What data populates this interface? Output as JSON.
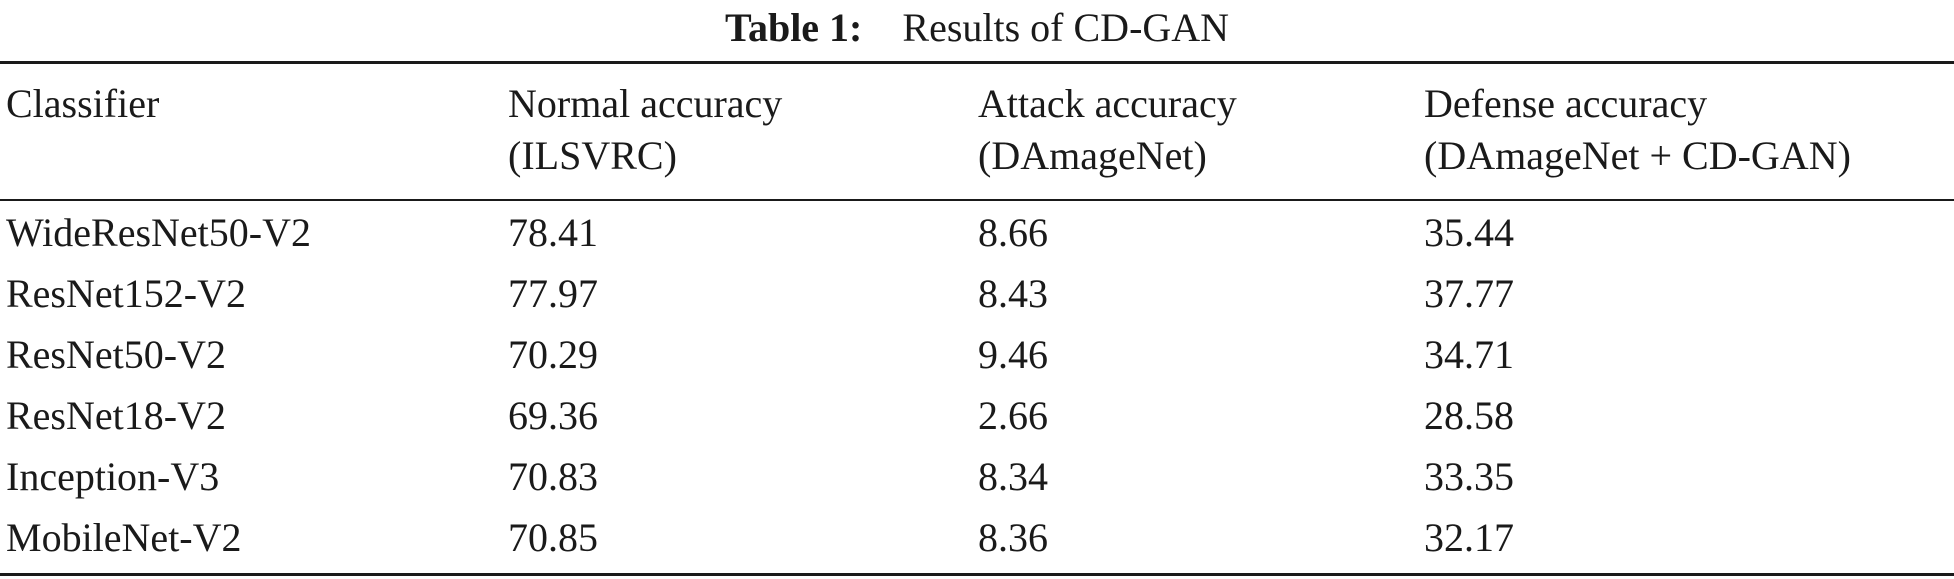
{
  "caption": {
    "label": "Table 1:",
    "text": "Results of CD-GAN"
  },
  "table": {
    "headers": [
      [
        "Classifier",
        ""
      ],
      [
        "Normal accuracy",
        "(ILSVRC)"
      ],
      [
        "Attack accuracy",
        "(DAmageNet)"
      ],
      [
        "Defense accuracy",
        "(DAmageNet + CD-GAN)"
      ]
    ],
    "rows": [
      [
        "WideResNet50-V2",
        "78.41",
        "8.66",
        "35.44"
      ],
      [
        "ResNet152-V2",
        "77.97",
        "8.43",
        "37.77"
      ],
      [
        "ResNet50-V2",
        "70.29",
        "9.46",
        "34.71"
      ],
      [
        "ResNet18-V2",
        "69.36",
        "2.66",
        "28.58"
      ],
      [
        "Inception-V3",
        "70.83",
        "8.34",
        "33.35"
      ],
      [
        "MobileNet-V2",
        "70.85",
        "8.36",
        "32.17"
      ]
    ]
  }
}
